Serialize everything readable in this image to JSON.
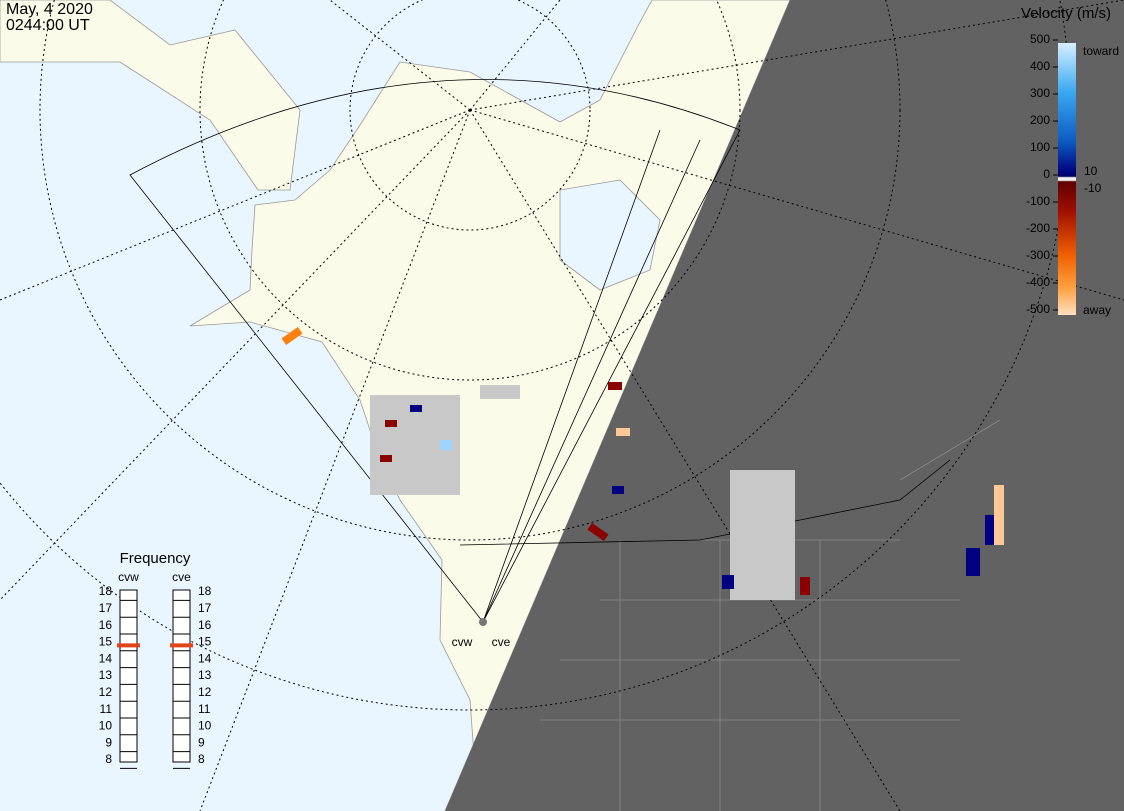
{
  "timestamp": {
    "date": "May, 4 2020",
    "time": "0244:00 UT"
  },
  "colorbar": {
    "title": "Velocity (m/s)",
    "ticks": [
      500,
      400,
      300,
      200,
      100,
      0,
      -100,
      -200,
      -300,
      -400,
      -500
    ],
    "inner_ticks": [
      10,
      -10
    ],
    "toward": "toward",
    "away": "away"
  },
  "frequency": {
    "title": "Frequency",
    "ticks": [
      18,
      17,
      16,
      15,
      14,
      13,
      12,
      11,
      10,
      9,
      8
    ],
    "radars": [
      {
        "name": "cvw",
        "value": 15
      },
      {
        "name": "cve",
        "value": 15
      }
    ]
  },
  "map": {
    "radar_labels": [
      "cvw",
      "cve"
    ]
  }
}
